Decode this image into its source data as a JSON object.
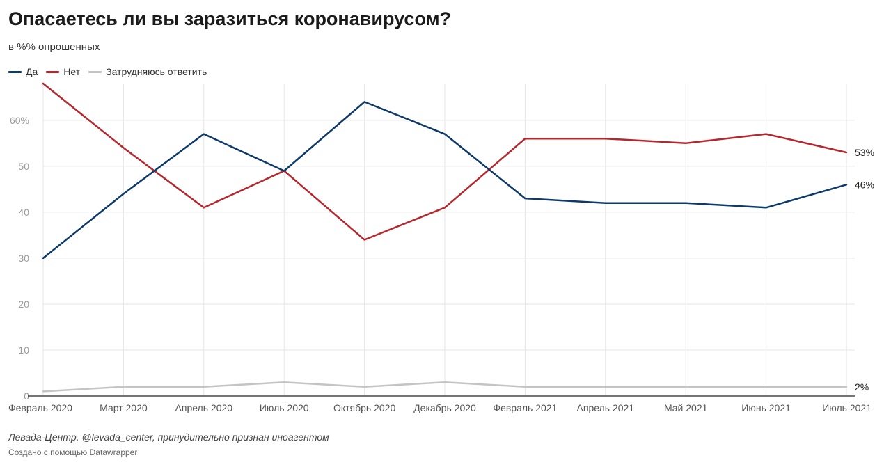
{
  "header": {
    "title": "Опасаетесь ли вы заразиться коронавирусом?",
    "subtitle": "в %% опрошенных"
  },
  "footer": {
    "source": "Левада-Центр, @levada_center, принудительно признан иноагентом",
    "credit": "Создано с помощью Datawrapper"
  },
  "chart_data": {
    "type": "line",
    "title": "Опасаетесь ли вы заразиться коронавирусом?",
    "subtitle": "в %% опрошенных",
    "xlabel": "",
    "ylabel": "",
    "ylim": [
      0,
      68
    ],
    "yticks": [
      0,
      10,
      20,
      30,
      40,
      50,
      60
    ],
    "ytick_labels": [
      "0",
      "10",
      "20",
      "30",
      "40",
      "50",
      "60%"
    ],
    "grid": true,
    "legend_position": "top-left",
    "categories": [
      "Февраль 2020",
      "Март 2020",
      "Апрель 2020",
      "Июль 2020",
      "Октябрь 2020",
      "Декабрь 2020",
      "Февраль 2021",
      "Апрель 2021",
      "Май 2021",
      "Июнь 2021",
      "Июль 2021"
    ],
    "series": [
      {
        "name": "Да",
        "color": "#0d3a6b",
        "values": [
          30,
          44,
          57,
          49,
          64,
          57,
          43,
          42,
          42,
          41,
          46
        ],
        "end_label": "46%"
      },
      {
        "name": "Нет",
        "color": "#b5272d",
        "values": [
          68,
          54,
          41,
          49,
          34,
          41,
          56,
          56,
          55,
          57,
          53
        ],
        "end_label": "53%"
      },
      {
        "name": "Затрудняюсь ответить",
        "color": "#c4c4c4",
        "values": [
          1,
          2,
          2,
          3,
          2,
          3,
          2,
          2,
          2,
          2,
          2
        ],
        "end_label": "2%"
      }
    ]
  }
}
